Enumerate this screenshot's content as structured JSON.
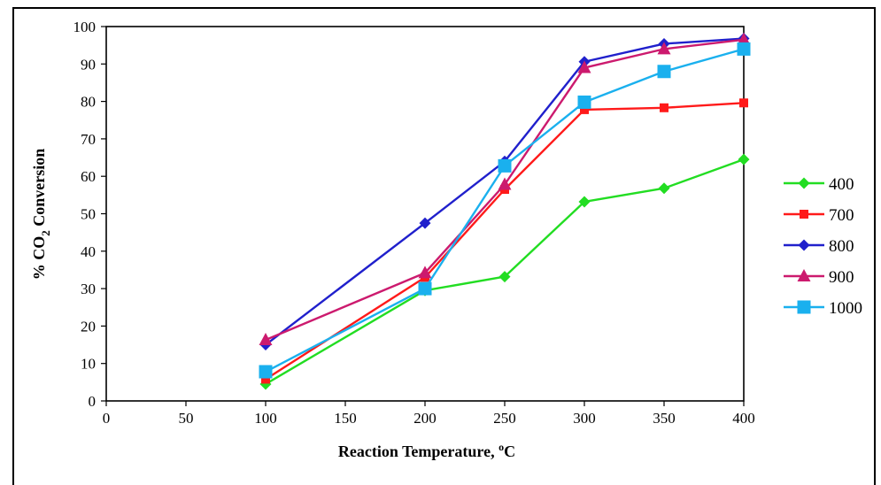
{
  "chart_data": {
    "type": "line",
    "title": "",
    "xlabel": "Reaction Temperature, ",
    "xlabel_sup": "o",
    "xlabel_tail": "C",
    "ylabel_prefix": "% CO",
    "ylabel_sub": "2",
    "ylabel_suffix": " Conversion",
    "xlim": [
      0,
      400
    ],
    "ylim": [
      0,
      100
    ],
    "xticks": [
      0,
      50,
      100,
      150,
      200,
      250,
      300,
      350,
      400
    ],
    "yticks": [
      0,
      10,
      20,
      30,
      40,
      50,
      60,
      70,
      80,
      90,
      100
    ],
    "grid": false,
    "legend_position": "right",
    "x": [
      100,
      200,
      250,
      300,
      350,
      400
    ],
    "series": [
      {
        "name": "400",
        "color": "#22dd22",
        "marker": "diamond",
        "values": [
          4.5,
          29.5,
          33.2,
          53.2,
          56.8,
          64.5
        ]
      },
      {
        "name": "700",
        "color": "#ff1a1a",
        "marker": "square",
        "values": [
          5.8,
          33.0,
          56.5,
          77.8,
          78.3,
          79.6
        ]
      },
      {
        "name": "800",
        "color": "#2020cc",
        "marker": "diamond",
        "values": [
          15.0,
          47.5,
          64.0,
          90.6,
          95.4,
          96.8
        ]
      },
      {
        "name": "900",
        "color": "#cc1a6e",
        "marker": "triangle",
        "values": [
          16.3,
          34.2,
          57.8,
          89.0,
          94.0,
          96.5
        ]
      },
      {
        "name": "1000",
        "color": "#1ab0ee",
        "marker": "square-large",
        "values": [
          7.8,
          30.0,
          62.8,
          79.8,
          88.0,
          94.0
        ]
      }
    ]
  }
}
